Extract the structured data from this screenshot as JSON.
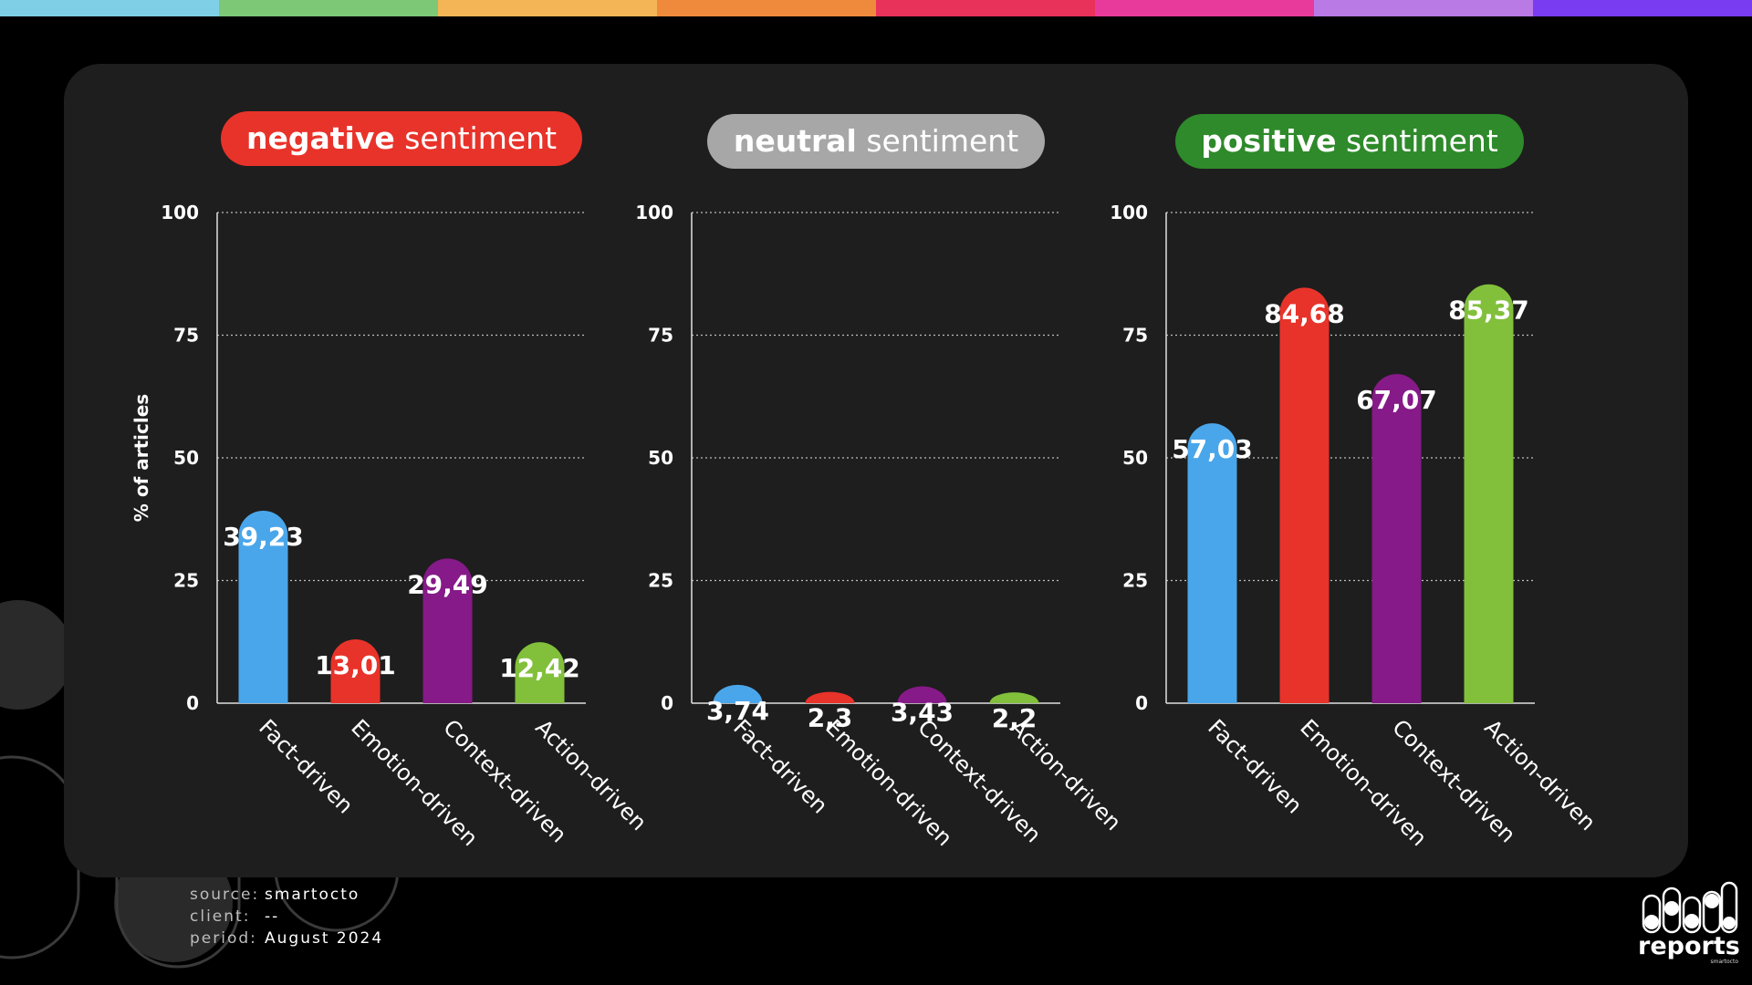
{
  "colors": {
    "top_stripe": [
      "#7fd0e6",
      "#7cc877",
      "#f3b555",
      "#ef8a3c",
      "#e8325a",
      "#e83a9a",
      "#b97ae6",
      "#7a3cf0"
    ],
    "fact": "#4aa6ea",
    "emotion": "#e8332a",
    "context": "#861a88",
    "action": "#82c03c",
    "badge_negative": "#e8332a",
    "badge_neutral": "#a7a7a7",
    "badge_positive": "#2e8a2a"
  },
  "chart_data": [
    {
      "type": "bar",
      "title_bold": "negative",
      "title_rest": "sentiment",
      "categories": [
        "Fact-driven",
        "Emotion-driven",
        "Context-driven",
        "Action-driven"
      ],
      "values": [
        39.23,
        13.01,
        29.49,
        12.42
      ],
      "value_labels": [
        "39,23",
        "13,01",
        "29,49",
        "12,42"
      ],
      "ylabel": "% of articles",
      "ylim": [
        0,
        100
      ],
      "yticks": [
        "0",
        "25",
        "50",
        "75",
        "100"
      ]
    },
    {
      "type": "bar",
      "title_bold": "neutral",
      "title_rest": "sentiment",
      "categories": [
        "Fact-driven",
        "Emotion-driven",
        "Context-driven",
        "Action-driven"
      ],
      "values": [
        3.74,
        2.3,
        3.43,
        2.2
      ],
      "value_labels": [
        "3,74",
        "2,3",
        "3,43",
        "2,2"
      ],
      "ylabel": "",
      "ylim": [
        0,
        100
      ],
      "yticks": [
        "0",
        "25",
        "50",
        "75",
        "100"
      ]
    },
    {
      "type": "bar",
      "title_bold": "positive",
      "title_rest": "sentiment",
      "categories": [
        "Fact-driven",
        "Emotion-driven",
        "Context-driven",
        "Action-driven"
      ],
      "values": [
        57.03,
        84.68,
        67.07,
        85.37
      ],
      "value_labels": [
        "57,03",
        "84,68",
        "67,07",
        "85,37"
      ],
      "ylabel": "",
      "ylim": [
        0,
        100
      ],
      "yticks": [
        "0",
        "25",
        "50",
        "75",
        "100"
      ]
    }
  ],
  "footer": {
    "source_label": "source:",
    "source_value": "smartocto",
    "client_label": "client:",
    "client_value": "--",
    "period_label": "period:",
    "period_value": "August 2024"
  },
  "logo": {
    "text": "reports",
    "sub": "smartocto"
  }
}
